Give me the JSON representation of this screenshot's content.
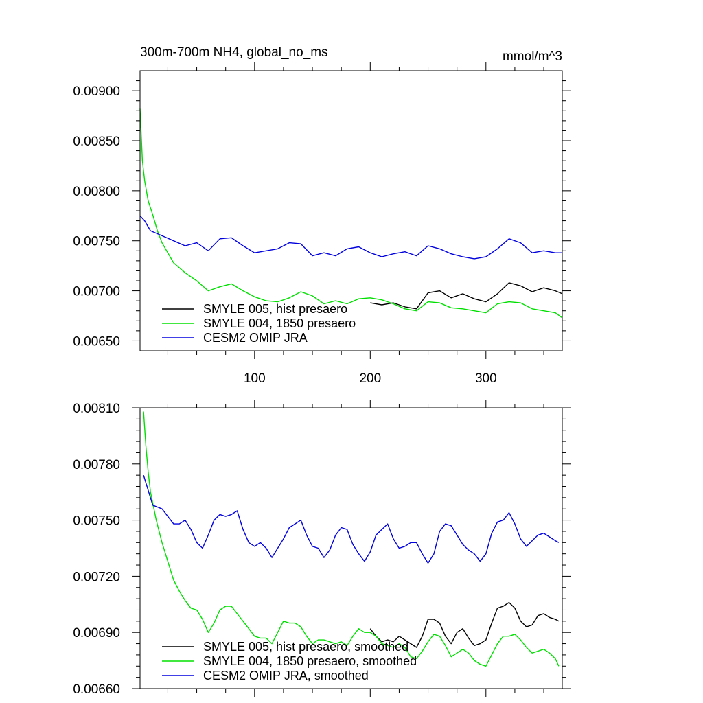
{
  "chart_data": [
    {
      "type": "line",
      "title": "300m-700m NH4, global_no_ms",
      "units": "mmol/m^3",
      "xlim": [
        1,
        366
      ],
      "ylim": [
        0.0064,
        0.0092
      ],
      "x_ticks": [
        100,
        200,
        300
      ],
      "x_tick_labels": [
        "100",
        "200",
        "300"
      ],
      "y_ticks": [
        0.0065,
        0.007,
        0.0075,
        0.008,
        0.0085,
        0.009
      ],
      "y_tick_labels": [
        "0.00650",
        "0.00700",
        "0.00750",
        "0.00800",
        "0.00850",
        "0.00900"
      ],
      "grid": false,
      "legend_position": "bottom-left",
      "series": [
        {
          "name": "SMYLE 005, hist presaero",
          "color": "#000000",
          "x": [
            200,
            210,
            220,
            230,
            240,
            250,
            260,
            270,
            280,
            290,
            300,
            310,
            320,
            330,
            340,
            350,
            360,
            366
          ],
          "values": [
            0.00688,
            0.00686,
            0.00688,
            0.00684,
            0.00682,
            0.00698,
            0.007,
            0.00693,
            0.00697,
            0.00692,
            0.00689,
            0.00697,
            0.00708,
            0.00705,
            0.00699,
            0.00703,
            0.007,
            0.00697
          ]
        },
        {
          "name": "SMYLE 004, 1850 presaero",
          "color": "#00e000",
          "x": [
            1,
            3,
            5,
            8,
            12,
            16,
            20,
            25,
            30,
            40,
            50,
            60,
            70,
            80,
            90,
            100,
            110,
            120,
            130,
            140,
            150,
            160,
            170,
            180,
            190,
            200,
            210,
            220,
            230,
            240,
            250,
            260,
            270,
            280,
            290,
            300,
            310,
            320,
            330,
            340,
            350,
            360,
            366
          ],
          "values": [
            0.00882,
            0.0083,
            0.0081,
            0.0079,
            0.00776,
            0.0076,
            0.00748,
            0.00738,
            0.00728,
            0.00718,
            0.0071,
            0.007,
            0.00704,
            0.00707,
            0.007,
            0.00694,
            0.0069,
            0.00689,
            0.00693,
            0.00699,
            0.00695,
            0.00687,
            0.0069,
            0.00687,
            0.00692,
            0.00693,
            0.00691,
            0.00687,
            0.00682,
            0.0068,
            0.00689,
            0.00688,
            0.00683,
            0.00682,
            0.0068,
            0.00678,
            0.00687,
            0.00689,
            0.00688,
            0.00682,
            0.0068,
            0.00678,
            0.00673
          ]
        },
        {
          "name": "CESM2 OMIP JRA",
          "color": "#0000dd",
          "x": [
            1,
            5,
            10,
            20,
            30,
            40,
            50,
            60,
            70,
            80,
            90,
            100,
            110,
            120,
            130,
            140,
            150,
            160,
            170,
            180,
            190,
            200,
            210,
            220,
            230,
            240,
            250,
            260,
            270,
            280,
            290,
            300,
            310,
            320,
            330,
            340,
            350,
            360,
            366
          ],
          "values": [
            0.00775,
            0.0077,
            0.0076,
            0.00755,
            0.0075,
            0.00745,
            0.00748,
            0.0074,
            0.00752,
            0.00753,
            0.00745,
            0.00738,
            0.0074,
            0.00742,
            0.00748,
            0.00747,
            0.00735,
            0.00738,
            0.00735,
            0.00742,
            0.00744,
            0.00738,
            0.00734,
            0.00737,
            0.00739,
            0.00735,
            0.00745,
            0.00742,
            0.00737,
            0.00734,
            0.00732,
            0.00734,
            0.00742,
            0.00752,
            0.00748,
            0.00738,
            0.0074,
            0.00738,
            0.00738
          ]
        }
      ]
    },
    {
      "type": "line",
      "title": "",
      "xlim": [
        1,
        366
      ],
      "ylim": [
        0.0066,
        0.0081
      ],
      "x_ticks": [
        100,
        200,
        300
      ],
      "x_tick_labels": [],
      "y_ticks": [
        0.0066,
        0.0069,
        0.0072,
        0.0075,
        0.0078,
        0.0081
      ],
      "y_tick_labels": [
        "0.00660",
        "0.00690",
        "0.00720",
        "0.00750",
        "0.00780",
        "0.00810"
      ],
      "grid": false,
      "legend_position": "bottom-left",
      "series": [
        {
          "name": "SMYLE 005, hist presaero, smoothed",
          "color": "#000000",
          "x": [
            200,
            205,
            210,
            215,
            220,
            225,
            230,
            235,
            240,
            245,
            250,
            255,
            260,
            265,
            270,
            275,
            280,
            285,
            290,
            295,
            300,
            305,
            310,
            315,
            320,
            325,
            330,
            335,
            340,
            345,
            350,
            355,
            360,
            363
          ],
          "values": [
            0.00692,
            0.00688,
            0.00685,
            0.00686,
            0.00685,
            0.00688,
            0.00686,
            0.00684,
            0.00682,
            0.00688,
            0.00697,
            0.00697,
            0.00695,
            0.00688,
            0.00684,
            0.0069,
            0.00692,
            0.00687,
            0.00683,
            0.00684,
            0.00686,
            0.00695,
            0.00703,
            0.00704,
            0.00706,
            0.00703,
            0.00696,
            0.00693,
            0.00694,
            0.00699,
            0.007,
            0.00698,
            0.00697,
            0.00696
          ]
        },
        {
          "name": "SMYLE 004, 1850 presaero, smoothed",
          "color": "#00e000",
          "x": [
            4,
            6,
            8,
            10,
            15,
            20,
            25,
            30,
            35,
            40,
            45,
            50,
            55,
            60,
            65,
            70,
            75,
            80,
            85,
            90,
            95,
            100,
            105,
            110,
            115,
            120,
            125,
            130,
            135,
            140,
            145,
            150,
            155,
            160,
            165,
            170,
            175,
            180,
            185,
            190,
            195,
            200,
            205,
            210,
            215,
            220,
            225,
            230,
            235,
            240,
            245,
            250,
            255,
            260,
            265,
            270,
            275,
            280,
            285,
            290,
            295,
            300,
            305,
            310,
            315,
            320,
            325,
            330,
            335,
            340,
            345,
            350,
            355,
            360,
            363
          ],
          "values": [
            0.00808,
            0.0079,
            0.00776,
            0.00765,
            0.0075,
            0.00738,
            0.00728,
            0.00718,
            0.00712,
            0.00707,
            0.00703,
            0.00702,
            0.00697,
            0.0069,
            0.00695,
            0.00702,
            0.00704,
            0.00704,
            0.007,
            0.00696,
            0.00692,
            0.00688,
            0.00687,
            0.00687,
            0.00684,
            0.0069,
            0.00696,
            0.00695,
            0.00695,
            0.00693,
            0.00688,
            0.00684,
            0.00686,
            0.00686,
            0.00685,
            0.00684,
            0.00685,
            0.00683,
            0.00688,
            0.00692,
            0.0069,
            0.0069,
            0.00688,
            0.00684,
            0.00683,
            0.00682,
            0.00684,
            0.00682,
            0.00677,
            0.00676,
            0.0068,
            0.00685,
            0.00689,
            0.00688,
            0.00683,
            0.00677,
            0.00679,
            0.00681,
            0.00679,
            0.00675,
            0.00673,
            0.00672,
            0.00678,
            0.00684,
            0.00688,
            0.00688,
            0.00689,
            0.00686,
            0.00682,
            0.00679,
            0.0068,
            0.00681,
            0.00679,
            0.00676,
            0.00672
          ]
        },
        {
          "name": "CESM2 OMIP JRA, smoothed",
          "color": "#0000dd",
          "x": [
            4,
            8,
            12,
            16,
            20,
            25,
            30,
            35,
            40,
            45,
            50,
            55,
            60,
            65,
            70,
            75,
            80,
            85,
            90,
            95,
            100,
            105,
            110,
            115,
            120,
            125,
            130,
            135,
            140,
            145,
            150,
            155,
            160,
            165,
            170,
            175,
            180,
            185,
            190,
            195,
            200,
            205,
            210,
            215,
            220,
            225,
            230,
            235,
            240,
            245,
            250,
            255,
            260,
            265,
            270,
            275,
            280,
            285,
            290,
            295,
            300,
            305,
            310,
            315,
            320,
            325,
            330,
            335,
            340,
            345,
            350,
            355,
            360,
            363
          ],
          "values": [
            0.00774,
            0.00766,
            0.00758,
            0.00757,
            0.00756,
            0.00752,
            0.00748,
            0.00748,
            0.0075,
            0.00745,
            0.00738,
            0.00735,
            0.00742,
            0.0075,
            0.00753,
            0.00752,
            0.00753,
            0.00755,
            0.00745,
            0.00738,
            0.00736,
            0.00738,
            0.00735,
            0.0073,
            0.00735,
            0.0074,
            0.00746,
            0.00748,
            0.0075,
            0.00742,
            0.00736,
            0.00735,
            0.0073,
            0.00734,
            0.00742,
            0.00746,
            0.00745,
            0.00737,
            0.00732,
            0.00728,
            0.00733,
            0.00742,
            0.00745,
            0.00748,
            0.0074,
            0.00735,
            0.00736,
            0.00738,
            0.00738,
            0.00732,
            0.00727,
            0.00732,
            0.00744,
            0.00748,
            0.00747,
            0.00742,
            0.00737,
            0.00734,
            0.00732,
            0.00728,
            0.00732,
            0.00743,
            0.00749,
            0.0075,
            0.00754,
            0.00748,
            0.0074,
            0.00736,
            0.00739,
            0.00742,
            0.00743,
            0.00741,
            0.00739,
            0.00738
          ]
        }
      ]
    }
  ]
}
